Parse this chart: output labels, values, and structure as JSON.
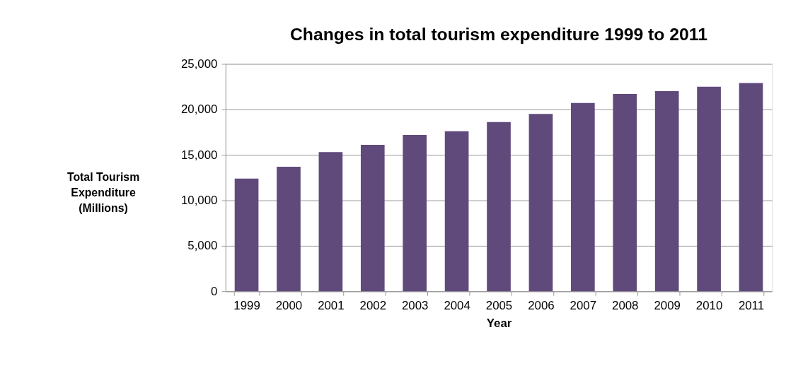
{
  "chart_data": {
    "type": "bar",
    "title": "Changes in total tourism expenditure 1999 to 2011",
    "xlabel": "Year",
    "ylabel": "Total Tourism\nExpenditure\n(Millions)",
    "categories": [
      "1999",
      "2000",
      "2001",
      "2002",
      "2003",
      "2004",
      "2005",
      "2006",
      "2007",
      "2008",
      "2009",
      "2010",
      "2011"
    ],
    "values": [
      12400,
      13700,
      15300,
      16100,
      17200,
      17600,
      18600,
      19500,
      20700,
      21700,
      22000,
      22500,
      22900
    ],
    "color": "#604a7b",
    "ylim": [
      0,
      25000
    ],
    "yticks": [
      0,
      {
        "value": 5000,
        "label": "5,000"
      },
      {
        "value": 10000,
        "label": "10,000"
      },
      {
        "value": 15000,
        "label": "15,000"
      },
      {
        "value": 20000,
        "label": "20,000"
      },
      {
        "value": 25000,
        "label": "25,000"
      }
    ],
    "grid": "y"
  }
}
